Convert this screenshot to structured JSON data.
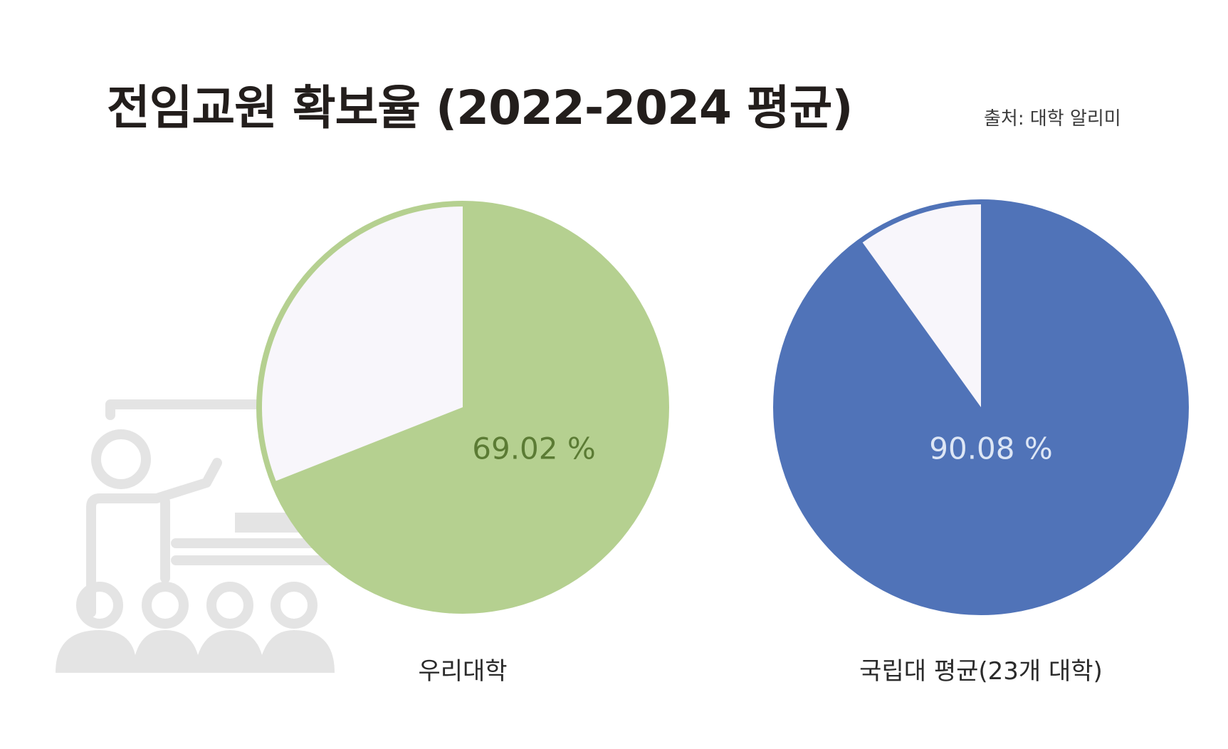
{
  "title": "전임교원 확보율 (2022-2024 평균)",
  "source": "출처: 대학 알리미",
  "icons": {
    "background": "teacher-classroom-icon"
  },
  "colors": {
    "series_ours": "#b5d090",
    "series_national": "#5073b8",
    "remainder": "#f8f6fb",
    "label_ours": "#5b7b34",
    "label_national": "#dde6f5"
  },
  "chart_data": [
    {
      "type": "pie",
      "title": "",
      "name": "우리대학",
      "value_percent": 69.02,
      "remainder_percent": 30.98,
      "label": "69.02 %",
      "caption": "우리대학"
    },
    {
      "type": "pie",
      "title": "",
      "name": "국립대 평균(23개 대학)",
      "value_percent": 90.08,
      "remainder_percent": 9.92,
      "label": "90.08 %",
      "caption": "국립대 평균(23개 대학)"
    }
  ]
}
